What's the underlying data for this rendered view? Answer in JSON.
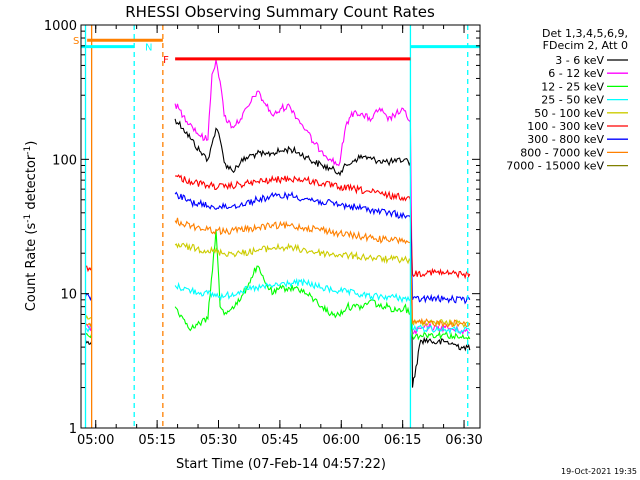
{
  "chart_data": {
    "type": "line",
    "title": "RHESSI Observing Summary Count Rates",
    "xlabel": "Start Time (07-Feb-14 04:57:22)",
    "ylabel": "Count Rate (s",
    "ylabel_sup1": "-1",
    "ylabel_mid": " detector",
    "ylabel_sup2": "-1",
    "ylabel_end": ")",
    "x_unit": "minutes after 04:57:22",
    "xlim": [
      -1.0,
      96.5
    ],
    "ylim": [
      1,
      1000
    ],
    "y_scale": "log",
    "x_ticks": [
      {
        "label": "05:00",
        "value": 2.6
      },
      {
        "label": "05:15",
        "value": 17.6
      },
      {
        "label": "05:30",
        "value": 32.6
      },
      {
        "label": "05:45",
        "value": 47.6
      },
      {
        "label": "06:00",
        "value": 62.6
      },
      {
        "label": "06:15",
        "value": 77.6
      },
      {
        "label": "06:30",
        "value": 92.6
      }
    ],
    "y_ticks": [
      {
        "label": "1",
        "value": 1
      },
      {
        "label": "10",
        "value": 10
      },
      {
        "label": "100",
        "value": 100
      },
      {
        "label": "1000",
        "value": 1000
      }
    ],
    "legend_header": [
      "Det 1,3,4,5,6,9,",
      "FDecim 2, Att 0"
    ],
    "legend_position": "right",
    "grid": false,
    "flags": [
      {
        "label": "S",
        "color": "#ff8000",
        "x0": 0.5,
        "x1": 19.0,
        "y": 770
      },
      {
        "label": "N",
        "color": "#00ffff",
        "x0": -1.0,
        "x1": 12.0,
        "y": 690
      },
      {
        "label": "N",
        "color": "#00ffff",
        "x0": 79.5,
        "x1": 96.5,
        "y": 690
      },
      {
        "label": "F",
        "color": "#ff0000",
        "x0": 22.0,
        "x1": 79.5,
        "y": 560
      }
    ],
    "vlines": [
      {
        "x": 0.1,
        "color": "#00ffff",
        "style": "solid"
      },
      {
        "x": 1.6,
        "color": "#ff8000",
        "style": "solid"
      },
      {
        "x": 12.0,
        "color": "#00ffff",
        "style": "dashed"
      },
      {
        "x": 19.0,
        "color": "#ff8000",
        "style": "dashed"
      },
      {
        "x": 79.5,
        "color": "#00ffff",
        "style": "solid"
      },
      {
        "x": 93.5,
        "color": "#00ffff",
        "style": "dashed"
      }
    ],
    "gaps": [
      [
        1.6,
        22.0
      ]
    ],
    "series": [
      {
        "name": "3 - 6 keV",
        "color": "#000000",
        "x": [
          0.1,
          1.0,
          1.6,
          22.0,
          24,
          26,
          28,
          30,
          31,
          32,
          33,
          34,
          36,
          38,
          40,
          42,
          44,
          46,
          48,
          50,
          52,
          54,
          56,
          58,
          60,
          62,
          64,
          66,
          68,
          70,
          72,
          74,
          76,
          78,
          79.5,
          80,
          82,
          84,
          86,
          88,
          90,
          92,
          93.5,
          94
        ],
        "y": [
          4.5,
          4.2,
          4.4,
          200,
          170,
          140,
          115,
          100,
          130,
          170,
          140,
          95,
          82,
          95,
          105,
          110,
          108,
          112,
          115,
          120,
          112,
          105,
          95,
          90,
          85,
          80,
          90,
          100,
          105,
          100,
          98,
          95,
          96,
          100,
          95,
          2.0,
          4.5,
          4.5,
          4.3,
          4.4,
          4.2,
          4.0,
          4.0,
          3.8
        ]
      },
      {
        "name": "6 - 12 keV",
        "color": "#ff00ff",
        "x": [
          0.1,
          1.0,
          1.6,
          22.0,
          24,
          26,
          28,
          30,
          31,
          32,
          33,
          34,
          36,
          38,
          40,
          42,
          44,
          46,
          48,
          50,
          52,
          54,
          56,
          58,
          60,
          62,
          64,
          66,
          68,
          70,
          72,
          74,
          76,
          78,
          79.5,
          80,
          82,
          84,
          86,
          88,
          90,
          92,
          93.5,
          94
        ],
        "y": [
          6.0,
          5.5,
          5.8,
          260,
          210,
          180,
          150,
          140,
          430,
          550,
          380,
          210,
          175,
          200,
          250,
          320,
          260,
          210,
          240,
          250,
          200,
          165,
          130,
          115,
          100,
          90,
          190,
          230,
          210,
          200,
          240,
          195,
          220,
          230,
          190,
          5.0,
          5.5,
          5.7,
          5.5,
          5.6,
          5.4,
          5.3,
          5.2,
          5.1
        ]
      },
      {
        "name": "12 - 25 keV",
        "color": "#00ff00",
        "x": [
          0.1,
          1.0,
          1.6,
          22.0,
          24,
          26,
          28,
          30,
          32,
          33,
          34,
          36,
          38,
          40,
          42,
          44,
          46,
          48,
          50,
          52,
          54,
          56,
          58,
          60,
          62,
          64,
          66,
          68,
          70,
          72,
          74,
          76,
          78,
          79.5,
          80,
          82,
          84,
          86,
          88,
          90,
          92,
          93.5,
          94
        ],
        "y": [
          5.0,
          4.8,
          5.0,
          8.0,
          6.5,
          5.5,
          6.0,
          6.5,
          30,
          8,
          7,
          8,
          9,
          12,
          16,
          12,
          10,
          11,
          11,
          11,
          10,
          9,
          8,
          7,
          7,
          8,
          8,
          8,
          9,
          8,
          8,
          7.5,
          8,
          7,
          4.8,
          4.9,
          5.0,
          4.9,
          5.0,
          4.8,
          4.7,
          4.6,
          4.6
        ]
      },
      {
        "name": "25 - 50 keV",
        "color": "#00ffff",
        "x": [
          0.1,
          1.0,
          1.6,
          22.0,
          26,
          30,
          34,
          38,
          42,
          46,
          50,
          54,
          58,
          62,
          66,
          70,
          74,
          78,
          79.5,
          80,
          84,
          88,
          92,
          94
        ],
        "y": [
          5.5,
          5.5,
          5.6,
          11.5,
          10.5,
          10,
          9.5,
          10.5,
          11,
          11.5,
          12,
          12,
          11,
          10.5,
          10,
          9.5,
          9.5,
          9.2,
          9.0,
          5.5,
          5.5,
          5.4,
          5.3,
          5.3
        ]
      },
      {
        "name": "50 - 100 keV",
        "color": "#cccc00",
        "x": [
          0.1,
          1.0,
          1.6,
          22.0,
          26,
          30,
          34,
          38,
          42,
          46,
          50,
          54,
          58,
          62,
          66,
          70,
          74,
          78,
          79.5,
          80,
          84,
          88,
          92,
          94
        ],
        "y": [
          6.5,
          6.5,
          6.6,
          23,
          22,
          21,
          20,
          20,
          21,
          22,
          22,
          21,
          20,
          19.5,
          19,
          18.5,
          18,
          18,
          17.5,
          6.0,
          6.2,
          6.1,
          6.0,
          6.0
        ]
      },
      {
        "name": "100 - 300 keV",
        "color": "#ff0000",
        "x": [
          0.1,
          1.0,
          1.6,
          22.0,
          26,
          30,
          34,
          38,
          42,
          46,
          50,
          54,
          58,
          62,
          66,
          70,
          74,
          78,
          79.5,
          80,
          84,
          88,
          92,
          94
        ],
        "y": [
          16,
          15.5,
          15.8,
          75,
          68,
          64,
          62,
          65,
          68,
          70,
          72,
          70,
          66,
          62,
          60,
          57,
          54,
          52,
          50,
          14,
          14.5,
          14.2,
          14.0,
          14.0
        ]
      },
      {
        "name": "300 - 800 keV",
        "color": "#0000ff",
        "x": [
          0.1,
          1.0,
          1.6,
          22.0,
          26,
          30,
          34,
          38,
          42,
          46,
          50,
          54,
          58,
          62,
          66,
          70,
          74,
          78,
          79.5,
          80,
          84,
          88,
          92,
          94
        ],
        "y": [
          9.5,
          9.5,
          9.6,
          55,
          48,
          45,
          44,
          46,
          50,
          53,
          54,
          51,
          48,
          46,
          44,
          42,
          40,
          38,
          37,
          9.0,
          9.2,
          9.1,
          9.0,
          9.0
        ]
      },
      {
        "name": "800 - 7000 keV",
        "color": "#ff8000",
        "x": [
          0.1,
          1.0,
          1.6,
          22.0,
          26,
          30,
          34,
          38,
          42,
          46,
          50,
          54,
          58,
          62,
          66,
          70,
          74,
          78,
          79.5,
          80,
          84,
          88,
          92,
          94
        ],
        "y": [
          6.0,
          6.0,
          6.1,
          35,
          32,
          30,
          29,
          30,
          31,
          32,
          32,
          31,
          30,
          28,
          27,
          26,
          25,
          25,
          24,
          6.0,
          6.1,
          6.0,
          6.0,
          6.0
        ]
      },
      {
        "name": "7000 - 15000 keV",
        "color": "#808000",
        "x": [],
        "y": []
      }
    ]
  },
  "footer": {
    "timestamp": "19-Oct-2021 19:35"
  }
}
